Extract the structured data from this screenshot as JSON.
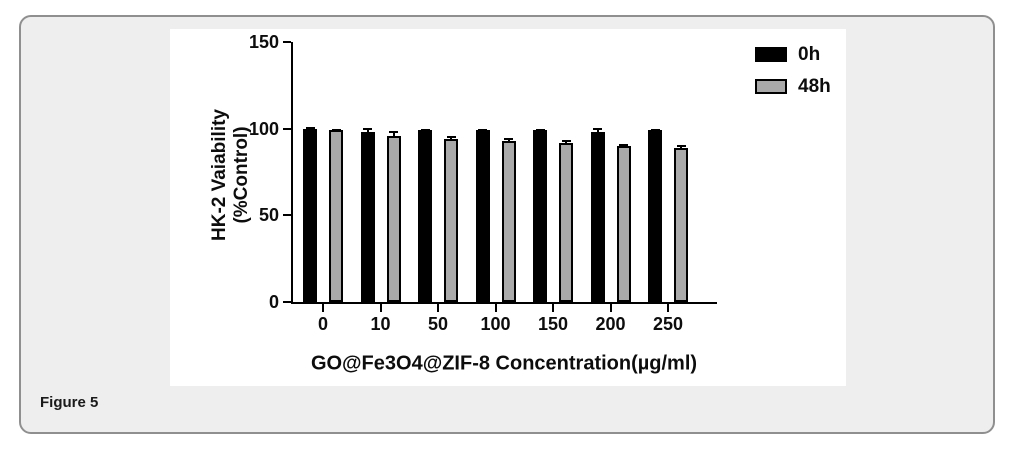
{
  "figure_label": "Figure 5",
  "chart_data": {
    "type": "bar",
    "title": "",
    "categories": [
      "0",
      "10",
      "50",
      "100",
      "150",
      "200",
      "250"
    ],
    "series": [
      {
        "name": "0h",
        "color": "#000000",
        "values": [
          100,
          98,
          99,
          99,
          99,
          98,
          99
        ],
        "errors": [
          0.5,
          2.0,
          0.5,
          0.5,
          0.5,
          2.0,
          0.5
        ]
      },
      {
        "name": "48h",
        "color": "#a9a9a9",
        "values": [
          99,
          96,
          94,
          93,
          92,
          90,
          89
        ],
        "errors": [
          0.5,
          2.0,
          1.0,
          0.8,
          0.8,
          0.8,
          0.8
        ]
      }
    ],
    "xlabel": "GO@Fe3O4@ZIF-8 Concentration(µg/ml)",
    "ylabel_line1": "HK-2 Vaiability",
    "ylabel_line2": "(%Control)",
    "ylim": [
      0,
      150
    ],
    "yticks": [
      0,
      50,
      100,
      150
    ],
    "grid": false,
    "legend_position": "top-right"
  },
  "colors": {
    "frame_border": "#8f8f8f",
    "frame_bg": "#eeeeee",
    "panel_bg": "#ffffff",
    "bar_0h": "#000000",
    "bar_48h": "#a9a9a9",
    "text": "#0d0d0d"
  }
}
